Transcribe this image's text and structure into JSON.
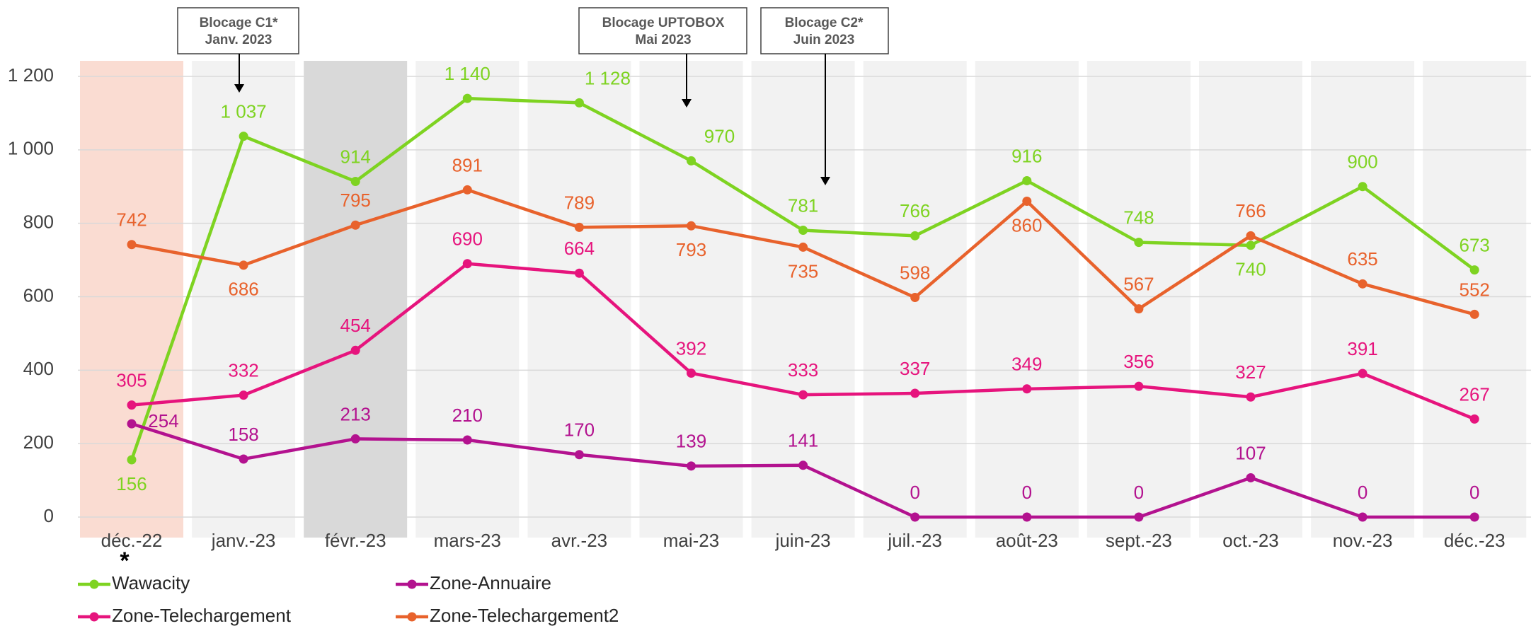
{
  "chart_data": {
    "type": "line",
    "categories": [
      "déc.-22",
      "janv.-23",
      "févr.-23",
      "mars-23",
      "avr.-23",
      "mai-23",
      "juin-23",
      "juil.-23",
      "août-23",
      "sept.-23",
      "oct.-23",
      "nov.-23",
      "déc.-23"
    ],
    "band_colors": [
      "#fadcd2",
      "#f2f2f2",
      "#d9d9d9",
      "#f2f2f2",
      "#f2f2f2",
      "#f2f2f2",
      "#f2f2f2",
      "#f2f2f2",
      "#f2f2f2",
      "#f2f2f2",
      "#f2f2f2",
      "#f2f2f2",
      "#f2f2f2"
    ],
    "series": [
      {
        "name": "Wawacity",
        "color": "#7ed321",
        "values": [
          156,
          1037,
          914,
          1140,
          1128,
          970,
          781,
          766,
          916,
          748,
          740,
          900,
          673
        ],
        "value_labels": [
          "156",
          "1 037",
          "914",
          "1 140",
          "1 128",
          "970",
          "781",
          "766",
          "916",
          "748",
          "740",
          "900",
          "673"
        ]
      },
      {
        "name": "Zone-Annuaire",
        "color": "#b3128f",
        "values": [
          254,
          158,
          213,
          210,
          170,
          139,
          141,
          0,
          0,
          0,
          107,
          0,
          0
        ]
      },
      {
        "name": "Zone-Telechargement",
        "color": "#e6147d",
        "values": [
          305,
          332,
          454,
          690,
          664,
          392,
          333,
          337,
          349,
          356,
          327,
          391,
          267
        ]
      },
      {
        "name": "Zone-Telechargement2",
        "color": "#e8622c",
        "values": [
          742,
          686,
          795,
          891,
          789,
          793,
          735,
          598,
          860,
          567,
          766,
          635,
          552
        ]
      }
    ],
    "ylim": [
      0,
      1200
    ],
    "yticks": [
      0,
      200,
      400,
      600,
      800,
      {
        "value": 1000,
        "label": "1 000"
      },
      {
        "value": 1200,
        "label": "1 200"
      }
    ],
    "grid": true,
    "annotations": [
      {
        "lines": [
          "Blocage C1*",
          "Janv. 2023"
        ],
        "category": "janv.-23"
      },
      {
        "lines": [
          "Blocage UPTOBOX",
          "Mai 2023"
        ],
        "category": "mai-23"
      },
      {
        "lines": [
          "Blocage C2*",
          "Juin 2023"
        ],
        "category": "juin-23"
      }
    ],
    "footnote_marker": "*"
  }
}
